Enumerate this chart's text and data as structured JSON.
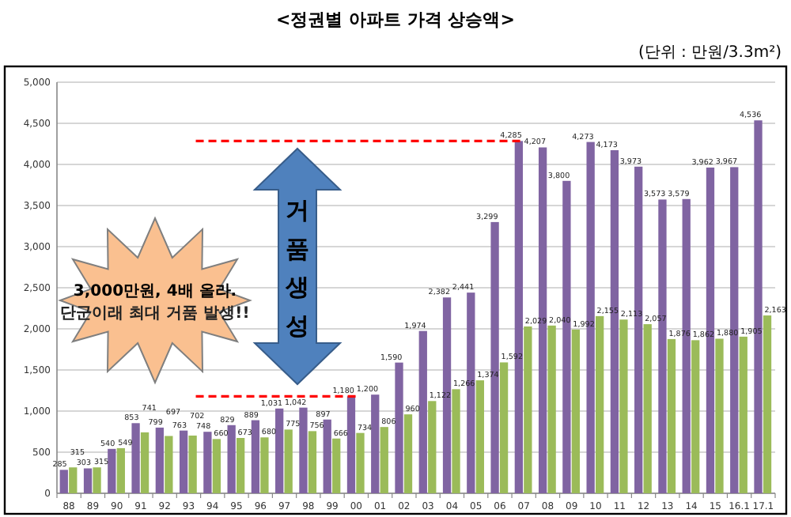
{
  "chart_data": {
    "type": "bar",
    "title": "<정권별 아파트 가격 상승액>",
    "subtitle": "(단위 : 만원/3.3m²)",
    "categories": [
      "88",
      "89",
      "90",
      "91",
      "92",
      "93",
      "94",
      "95",
      "96",
      "97",
      "98",
      "99",
      "00",
      "01",
      "02",
      "03",
      "04",
      "05",
      "06",
      "07",
      "08",
      "09",
      "10",
      "11",
      "12",
      "13",
      "14",
      "15",
      "16.1",
      "17.1"
    ],
    "series": [
      {
        "color": "#8064a2",
        "values": [
          285,
          303,
          540,
          853,
          799,
          763,
          748,
          829,
          889,
          1031,
          1042,
          897,
          1180,
          1200,
          1590,
          1974,
          2382,
          2441,
          3299,
          4285,
          4207,
          3800,
          4273,
          4173,
          3973,
          3573,
          3579,
          3962,
          3967,
          4536
        ],
        "value_labels": [
          "285",
          "303",
          "540",
          "853",
          "799",
          "763",
          "748",
          "829",
          "889",
          "1,031",
          "1,042",
          "897",
          "1,180",
          "1,200",
          "1,590",
          "1,974",
          "2,382",
          "2,441",
          "3,299",
          "4,285",
          "4,207",
          "3,800",
          "4,273",
          "4,173",
          "3,973",
          "3,573",
          "3,579",
          "3,962",
          "3,967",
          "4,536"
        ]
      },
      {
        "color": "#9bbb59",
        "values": [
          315,
          315,
          549,
          741,
          697,
          702,
          660,
          673,
          680,
          775,
          756,
          666,
          734,
          806,
          960,
          1122,
          1266,
          1374,
          1592,
          2029,
          2040,
          1992,
          2155,
          2113,
          2057,
          1876,
          1862,
          1880,
          1905,
          2163
        ],
        "value_labels": [
          "315",
          "315",
          "549",
          "741",
          "697",
          "702",
          "660",
          "673",
          "680",
          "775",
          "756",
          "666",
          "734",
          "806",
          "960",
          "1,122",
          "1,266",
          "1,374",
          "1,592",
          "2,029",
          "2,040",
          "1,992",
          "2,155",
          "2,113",
          "2,057",
          "1,876",
          "1,862",
          "1,880",
          "1,905",
          "2,163"
        ]
      }
    ],
    "ylim": [
      0,
      5000
    ],
    "yticks": [
      0,
      {
        "value": 500,
        "label": "500"
      },
      {
        "value": 1000,
        "label": "1,000"
      },
      {
        "value": 1500,
        "label": "1,500"
      },
      {
        "value": 2000,
        "label": "2,000"
      },
      {
        "value": 2500,
        "label": "2,500"
      },
      {
        "value": 3000,
        "label": "3,000"
      },
      {
        "value": 3500,
        "label": "3,500"
      },
      {
        "value": 4000,
        "label": "4,000"
      },
      {
        "value": 4500,
        "label": "4,500"
      },
      {
        "value": 5000,
        "label": "5,000"
      }
    ],
    "grid": "y",
    "ref_lines": [
      {
        "axis": "y",
        "value": 1180,
        "color": "#ff0000",
        "line_style": "dashed"
      },
      {
        "axis": "y",
        "value": 4285,
        "color": "#ff0000",
        "line_style": "dashed"
      }
    ],
    "annotations": [
      "3,000만원, 4배 올라.",
      "단군이래 최대 거품 발생!!",
      "거품생성"
    ]
  }
}
